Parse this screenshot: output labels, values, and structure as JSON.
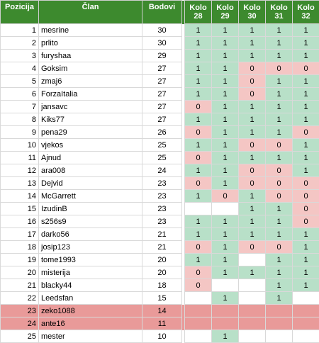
{
  "headers": {
    "position": "Pozicija",
    "member": "Član",
    "points": "Bodovi",
    "rounds": [
      {
        "line1": "Kolo",
        "line2": "28"
      },
      {
        "line1": "Kolo",
        "line2": "29"
      },
      {
        "line1": "Kolo",
        "line2": "30"
      },
      {
        "line1": "Kolo",
        "line2": "31"
      },
      {
        "line1": "Kolo",
        "line2": "32"
      }
    ]
  },
  "colors": {
    "header": "#3d8a2e",
    "correct": "#b8e0c8",
    "wrong": "#f4c6c4",
    "relegated": "#e99a99"
  },
  "rows": [
    {
      "pos": "1",
      "name": "mesrine",
      "pts": "30",
      "r": [
        "1",
        "1",
        "1",
        "1",
        "1"
      ]
    },
    {
      "pos": "2",
      "name": "prlito",
      "pts": "30",
      "r": [
        "1",
        "1",
        "1",
        "1",
        "1"
      ]
    },
    {
      "pos": "3",
      "name": "furyshaa",
      "pts": "29",
      "r": [
        "1",
        "1",
        "1",
        "1",
        "1"
      ]
    },
    {
      "pos": "4",
      "name": "Goksim",
      "pts": "27",
      "r": [
        "1",
        "1",
        "0",
        "0",
        "0"
      ]
    },
    {
      "pos": "5",
      "name": "zmaj6",
      "pts": "27",
      "r": [
        "1",
        "1",
        "0",
        "1",
        "1"
      ]
    },
    {
      "pos": "6",
      "name": "ForzaItalia",
      "pts": "27",
      "r": [
        "1",
        "1",
        "0",
        "1",
        "1"
      ]
    },
    {
      "pos": "7",
      "name": "jansavc",
      "pts": "27",
      "r": [
        "0",
        "1",
        "1",
        "1",
        "1"
      ]
    },
    {
      "pos": "8",
      "name": "Kiks77",
      "pts": "27",
      "r": [
        "1",
        "1",
        "1",
        "1",
        "1"
      ]
    },
    {
      "pos": "9",
      "name": "pena29",
      "pts": "26",
      "r": [
        "0",
        "1",
        "1",
        "1",
        "0"
      ]
    },
    {
      "pos": "10",
      "name": "vjekos",
      "pts": "25",
      "r": [
        "1",
        "1",
        "0",
        "0",
        "1"
      ]
    },
    {
      "pos": "11",
      "name": "Ajnud",
      "pts": "25",
      "r": [
        "0",
        "1",
        "1",
        "1",
        "1"
      ]
    },
    {
      "pos": "12",
      "name": "ara008",
      "pts": "24",
      "r": [
        "1",
        "1",
        "0",
        "0",
        "1"
      ]
    },
    {
      "pos": "13",
      "name": "Dejvid",
      "pts": "23",
      "r": [
        "0",
        "1",
        "0",
        "0",
        "0"
      ]
    },
    {
      "pos": "14",
      "name": "McGarrett",
      "pts": "23",
      "r": [
        "1",
        "0",
        "1",
        "0",
        "0"
      ]
    },
    {
      "pos": "15",
      "name": "IzudinB",
      "pts": "23",
      "r": [
        "",
        "",
        "1",
        "1",
        "0"
      ]
    },
    {
      "pos": "16",
      "name": "s256s9",
      "pts": "23",
      "r": [
        "1",
        "1",
        "1",
        "1",
        "0"
      ]
    },
    {
      "pos": "17",
      "name": "darko56",
      "pts": "21",
      "r": [
        "1",
        "1",
        "1",
        "1",
        "1"
      ]
    },
    {
      "pos": "18",
      "name": "josip123",
      "pts": "21",
      "r": [
        "0",
        "1",
        "0",
        "0",
        "1"
      ]
    },
    {
      "pos": "19",
      "name": "tome1993",
      "pts": "20",
      "r": [
        "1",
        "1",
        "",
        "1",
        "1"
      ]
    },
    {
      "pos": "20",
      "name": "misterija",
      "pts": "20",
      "r": [
        "0",
        "1",
        "1",
        "1",
        "1"
      ]
    },
    {
      "pos": "21",
      "name": "blacky44",
      "pts": "18",
      "r": [
        "0",
        "",
        "",
        "1",
        "1"
      ]
    },
    {
      "pos": "22",
      "name": "Leedsfan",
      "pts": "15",
      "r": [
        "",
        "1",
        "",
        "1",
        ""
      ]
    },
    {
      "pos": "23",
      "name": "zeko1088",
      "pts": "14",
      "r": [
        "",
        "",
        "",
        "",
        ""
      ],
      "relegated": true
    },
    {
      "pos": "24",
      "name": "ante16",
      "pts": "11",
      "r": [
        "",
        "",
        "",
        "",
        ""
      ],
      "relegated": true
    },
    {
      "pos": "25",
      "name": "mester",
      "pts": "10",
      "r": [
        "",
        "1",
        "",
        "",
        ""
      ]
    }
  ]
}
